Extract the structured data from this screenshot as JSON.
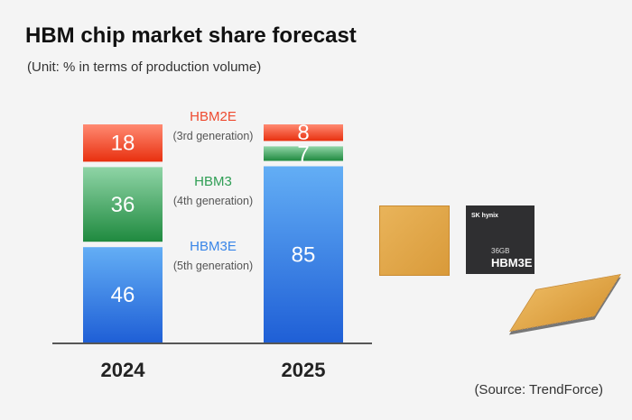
{
  "title": "HBM chip market share forecast",
  "subtitle": "(Unit: % in terms of production volume)",
  "source": "(Source: TrendForce)",
  "chip_image": {
    "brand": "SK hynix",
    "capacity": "36GB",
    "product": "HBM3E"
  },
  "chart_data": {
    "type": "bar",
    "stacked": true,
    "categories": [
      "2024",
      "2025"
    ],
    "series": [
      {
        "name": "HBM3E",
        "generation": "(5th generation)",
        "values": [
          46,
          85
        ],
        "color": "#3a86e8"
      },
      {
        "name": "HBM3",
        "generation": "(4th generation)",
        "values": [
          36,
          7
        ],
        "color": "#2f9e55"
      },
      {
        "name": "HBM2E",
        "generation": "(3rd generation)",
        "values": [
          18,
          8
        ],
        "color": "#ee4b30"
      }
    ],
    "ylim": [
      0,
      100
    ],
    "grid": false,
    "legend": "between bars"
  }
}
